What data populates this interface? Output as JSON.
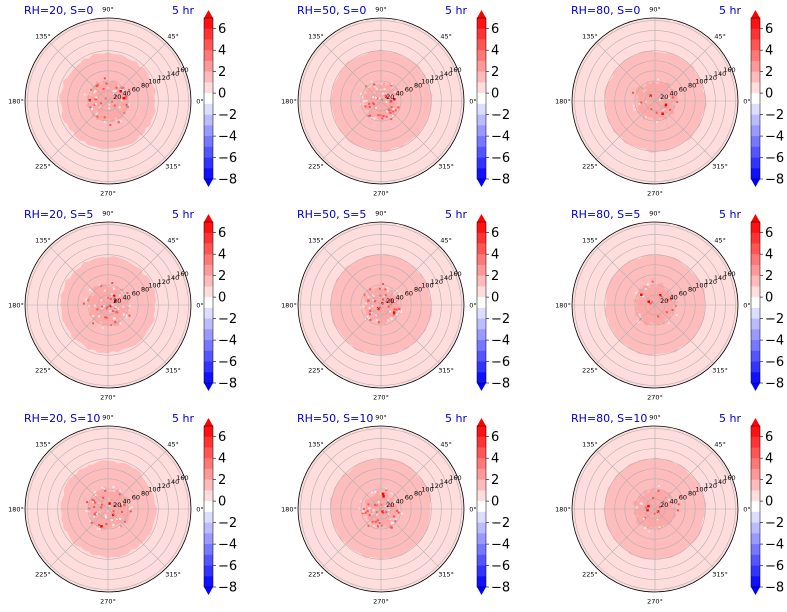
{
  "chart_data": {
    "type": "heatmap",
    "projection": "polar",
    "radial_ticks": [
      20,
      40,
      60,
      80,
      100,
      120,
      140,
      160
    ],
    "angular_ticks": [
      "0°",
      "45°",
      "90°",
      "135°",
      "180°",
      "225°",
      "270°",
      "315°"
    ],
    "rmax": 165,
    "colorbar": {
      "ticks": [
        6,
        4,
        2,
        0,
        -2,
        -4,
        -6,
        -8
      ],
      "tick_labels": [
        "6",
        "4",
        "2",
        "0",
        "−2",
        "−4",
        "−6",
        "−8"
      ],
      "vmin": -8,
      "vmax": 7,
      "levels": 15,
      "colormap": "bwr",
      "extend": "both"
    },
    "colors": {
      "title": "#0000c8",
      "outer_band": "#ffdddd",
      "middle_band": "#ffbcbc",
      "inner_core": "#ffa8a8",
      "speck": "#ff5050",
      "hot": "#ff0000",
      "grid": "#b0b0b0"
    },
    "panels": [
      {
        "title": "RH=20, S=0",
        "time": "5 hr",
        "inner_r": 40,
        "middle_r": 95,
        "outer_r": 165
      },
      {
        "title": "RH=50, S=0",
        "time": "5 hr",
        "inner_r": 35,
        "middle_r": 100,
        "outer_r": 165
      },
      {
        "title": "RH=80, S=0",
        "time": "5 hr",
        "inner_r": 40,
        "middle_r": 100,
        "outer_r": 165
      },
      {
        "title": "RH=20, S=5",
        "time": "5 hr",
        "inner_r": 40,
        "middle_r": 95,
        "outer_r": 165
      },
      {
        "title": "RH=50, S=5",
        "time": "5 hr",
        "inner_r": 35,
        "middle_r": 100,
        "outer_r": 165
      },
      {
        "title": "RH=80, S=5",
        "time": "5 hr",
        "inner_r": 40,
        "middle_r": 100,
        "outer_r": 165
      },
      {
        "title": "RH=20, S=10",
        "time": "5 hr",
        "inner_r": 40,
        "middle_r": 95,
        "outer_r": 165
      },
      {
        "title": "RH=50, S=10",
        "time": "5 hr",
        "inner_r": 35,
        "middle_r": 100,
        "outer_r": 165
      },
      {
        "title": "RH=80, S=10",
        "time": "5 hr",
        "inner_r": 40,
        "middle_r": 100,
        "outer_r": 165
      }
    ]
  }
}
